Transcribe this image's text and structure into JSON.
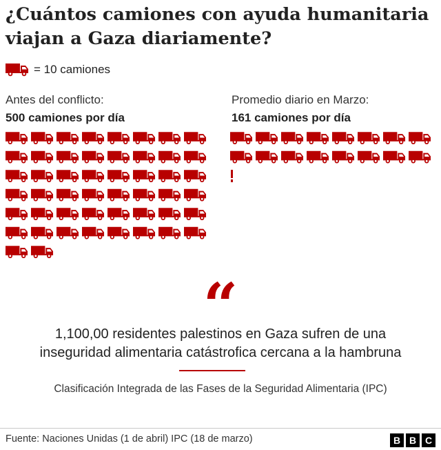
{
  "title_line1": "¿Cuántos camiones con ayuda humanitaria",
  "title_line2": "viajan a Gaza diariamente?",
  "legend": {
    "icon": "truck-icon",
    "text": "= 10 camiones"
  },
  "colors": {
    "truck": "#b80000",
    "accent": "#b80000",
    "text": "#222222"
  },
  "chart_data": {
    "type": "pictogram",
    "unit": "10 camiones",
    "units_per_icon": 10,
    "series": [
      {
        "label": "Antes del conflicto:",
        "value_label": "500 camiones por día",
        "value": 500
      },
      {
        "label": "Promedio diario en Marzo:",
        "value_label": "161 camiones por día",
        "value": 161
      }
    ]
  },
  "quote": {
    "mark": "“",
    "line1": "1,100,00 residentes palestinos en Gaza sufren de una",
    "line2": "inseguridad alimentaria catástrofica cercana a la hambruna",
    "source": "Clasificación Integrada de las Fases de la Seguridad Alimentaria (IPC)"
  },
  "footer": {
    "source": "Fuente: Naciones Unidas (1 de abril) IPC (18 de marzo)",
    "logo": [
      "B",
      "B",
      "C"
    ]
  }
}
